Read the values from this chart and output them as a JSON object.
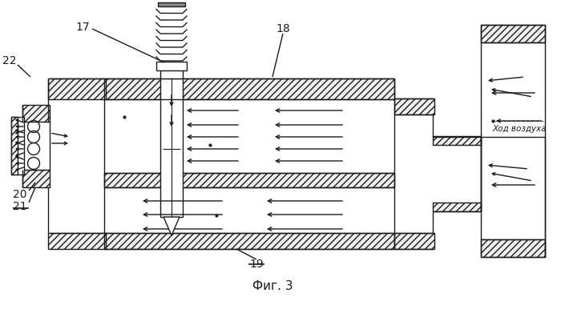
{
  "bg_color": "#ffffff",
  "lc": "#1a1a1a",
  "lw": 1.0,
  "title": "Фиг. 3",
  "air_flow_text": "Ход воздуха",
  "hatch": "////"
}
